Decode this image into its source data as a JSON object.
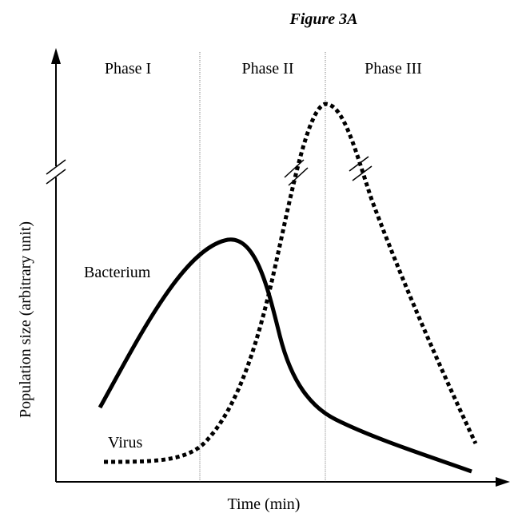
{
  "title": "Figure 3A",
  "phases": [
    "Phase I",
    "Phase II",
    "Phase III"
  ],
  "curves": {
    "bacterium": "Bacterium",
    "virus": "Virus"
  },
  "axes": {
    "x_label": "Time (min)",
    "y_label": "Population size (arbitrary unit)"
  }
}
